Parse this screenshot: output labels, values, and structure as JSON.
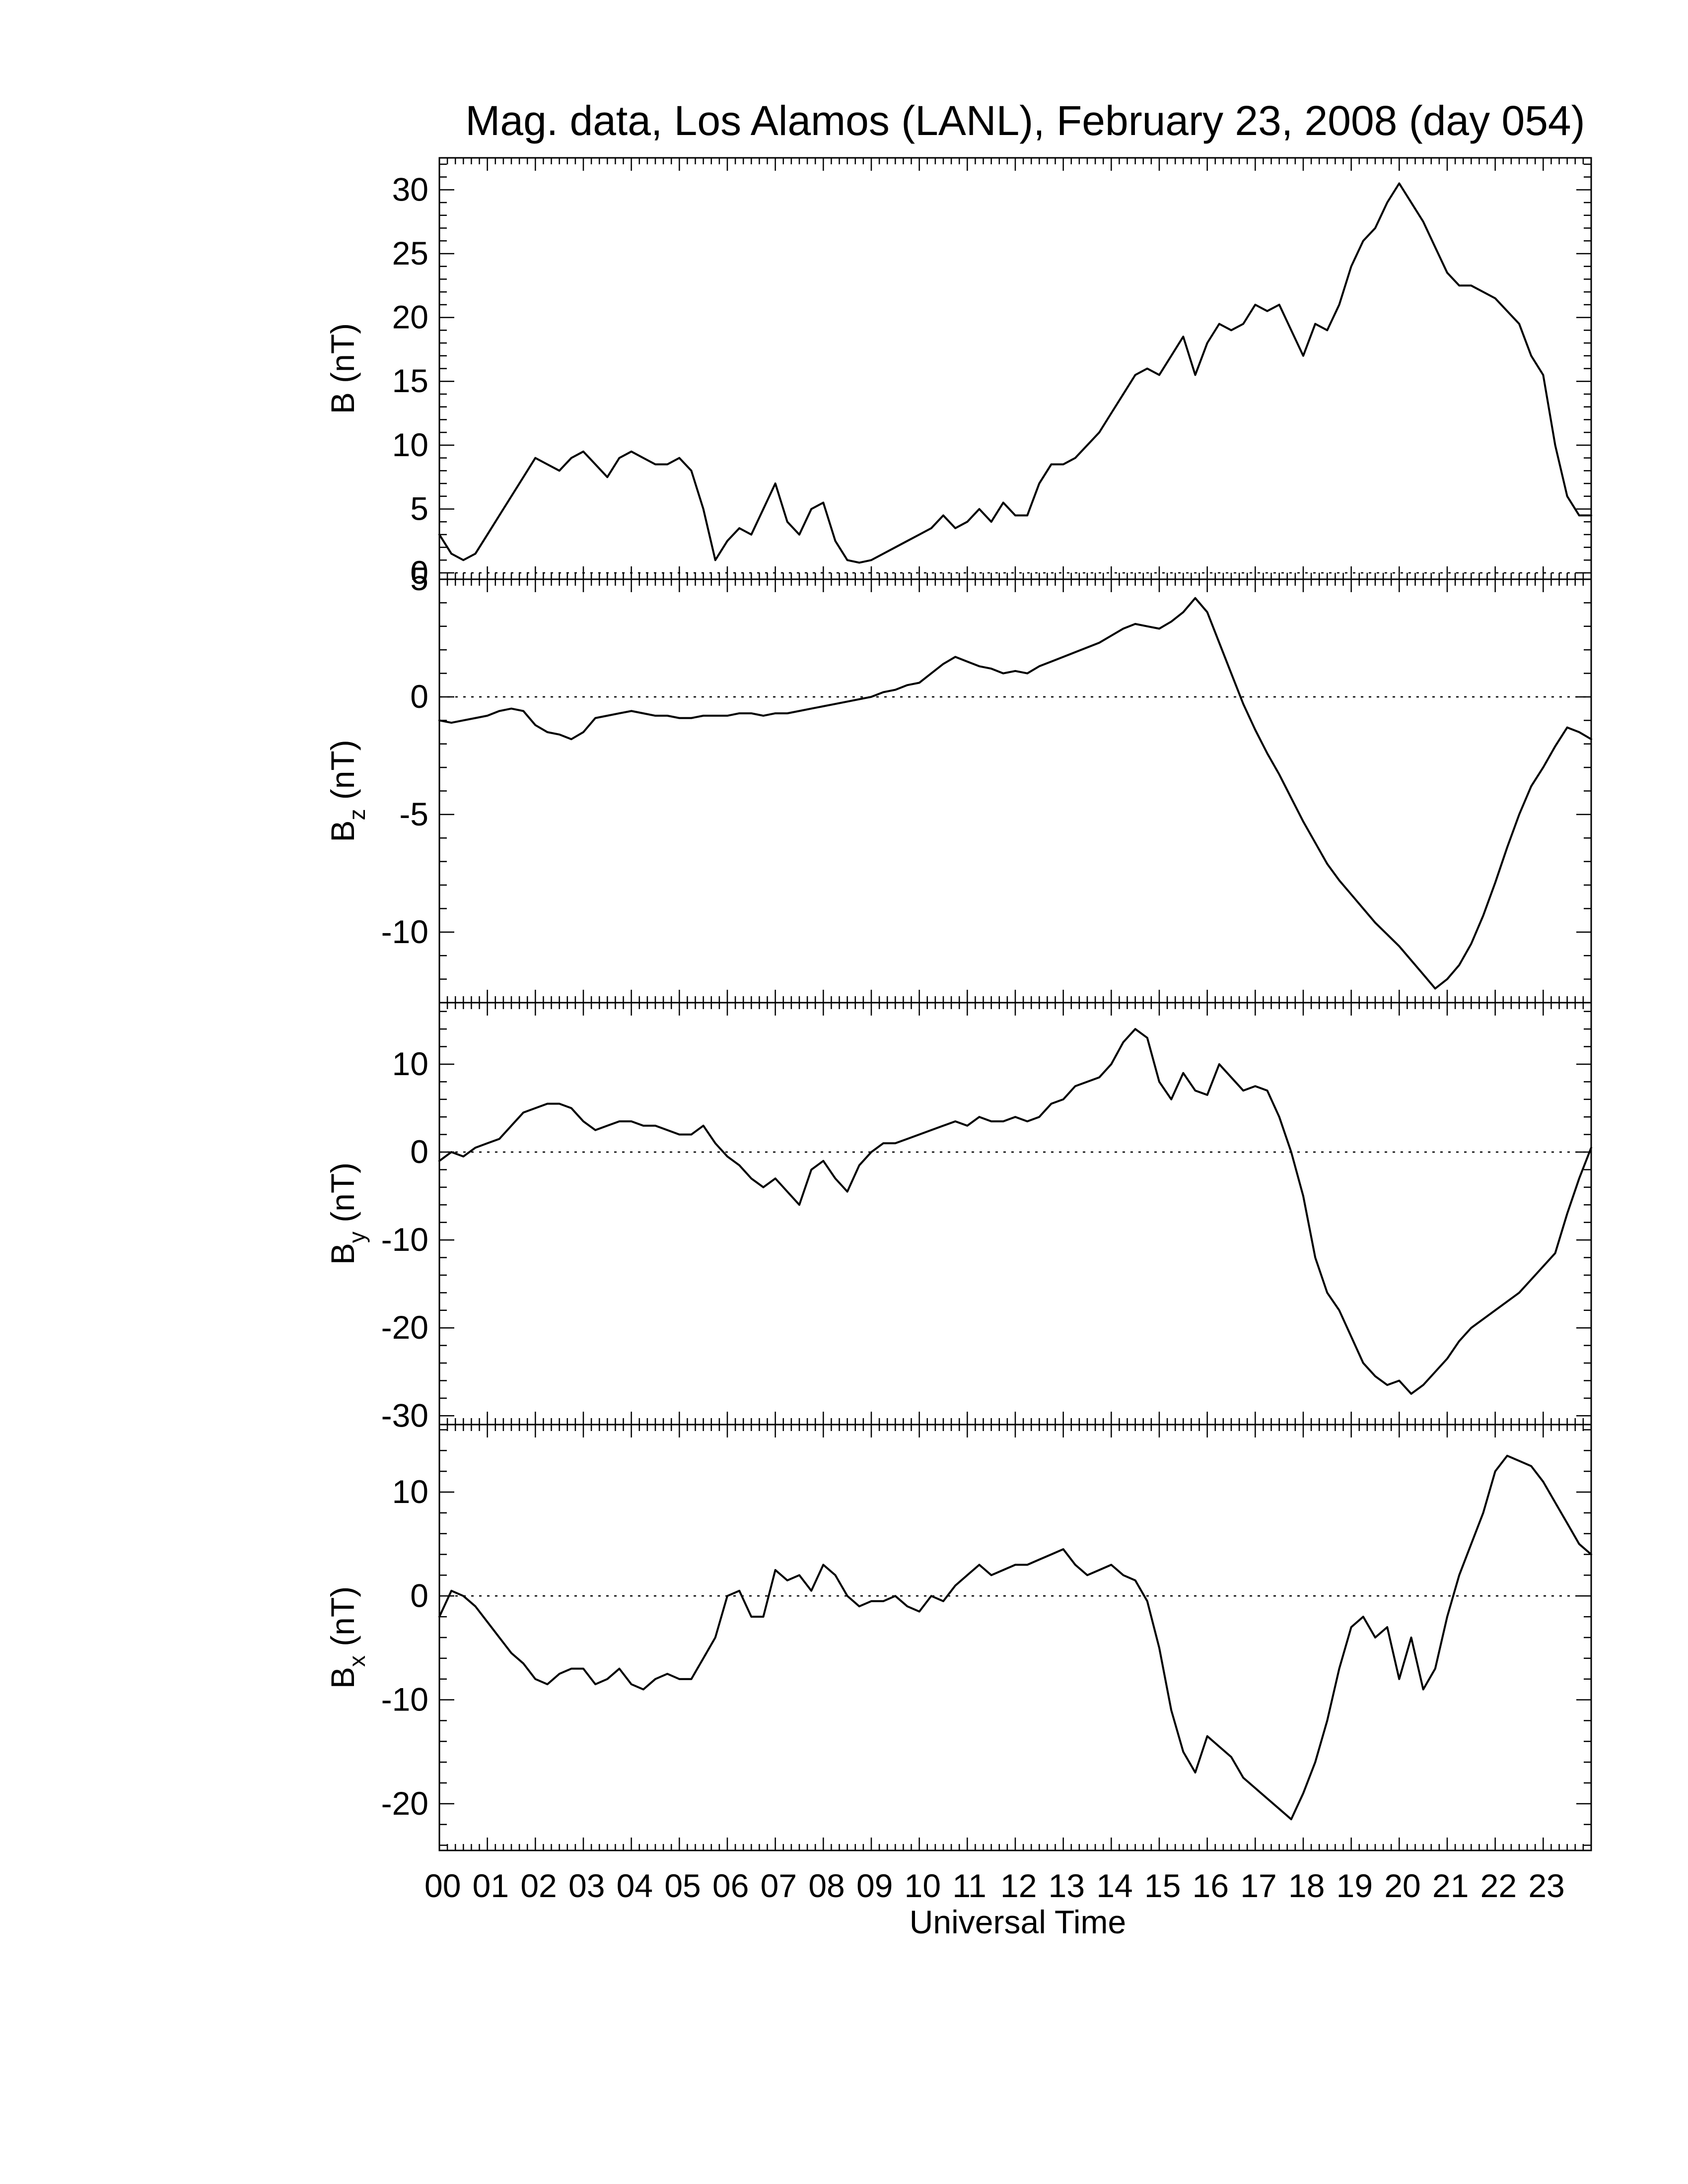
{
  "figure": {
    "title": "Mag. data, Los Alamos (LANL), February 23, 2008 (day 054)",
    "xlabel": "Universal Time",
    "x_tick_labels": [
      "00",
      "01",
      "02",
      "03",
      "04",
      "05",
      "06",
      "07",
      "08",
      "09",
      "10",
      "11",
      "12",
      "13",
      "14",
      "15",
      "16",
      "17",
      "18",
      "19",
      "20",
      "21",
      "22",
      "23"
    ]
  },
  "chart_data": [
    {
      "type": "line",
      "name": "B",
      "ylabel": "B (nT)",
      "ylabel_main": "B",
      "ylabel_sub": "",
      "ylabel_unit": "(nT)",
      "xlim": [
        0,
        24
      ],
      "ylim": [
        -0.5,
        32.5
      ],
      "yticks": [
        0,
        5,
        10,
        15,
        20,
        25,
        30
      ],
      "zero_line": true,
      "series": [
        {
          "x": [
            0.0,
            0.25,
            0.5,
            0.75,
            1.0,
            1.25,
            1.5,
            1.75,
            2.0,
            2.25,
            2.5,
            2.75,
            3.0,
            3.25,
            3.5,
            3.75,
            4.0,
            4.25,
            4.5,
            4.75,
            5.0,
            5.25,
            5.5,
            5.75,
            6.0,
            6.25,
            6.5,
            6.75,
            7.0,
            7.25,
            7.5,
            7.75,
            8.0,
            8.25,
            8.5,
            8.75,
            9.0,
            9.25,
            9.5,
            9.75,
            10.0,
            10.25,
            10.5,
            10.75,
            11.0,
            11.25,
            11.5,
            11.75,
            12.0,
            12.25,
            12.5,
            12.75,
            13.0,
            13.25,
            13.5,
            13.75,
            14.0,
            14.25,
            14.5,
            14.75,
            15.0,
            15.25,
            15.5,
            15.75,
            16.0,
            16.25,
            16.5,
            16.75,
            17.0,
            17.25,
            17.5,
            17.75,
            18.0,
            18.25,
            18.5,
            18.75,
            19.0,
            19.25,
            19.5,
            19.75,
            20.0,
            20.25,
            20.5,
            20.75,
            21.0,
            21.25,
            21.5,
            21.75,
            22.0,
            22.25,
            22.5,
            22.75,
            23.0,
            23.25,
            23.5,
            23.75,
            24.0
          ],
          "y": [
            3.0,
            1.5,
            1.0,
            1.5,
            3.0,
            4.5,
            6.0,
            7.5,
            9.0,
            8.5,
            8.0,
            9.0,
            9.5,
            8.5,
            7.5,
            9.0,
            9.5,
            9.0,
            8.5,
            8.5,
            9.0,
            8.0,
            5.0,
            1.0,
            2.5,
            3.5,
            3.0,
            5.0,
            7.0,
            4.0,
            3.0,
            5.0,
            5.5,
            2.5,
            1.0,
            0.8,
            1.0,
            1.5,
            2.0,
            2.5,
            3.0,
            3.5,
            4.5,
            3.5,
            4.0,
            5.0,
            4.0,
            5.5,
            4.5,
            4.5,
            7.0,
            8.5,
            8.5,
            9.0,
            10.0,
            11.0,
            12.5,
            14.0,
            15.5,
            16.0,
            15.5,
            17.0,
            18.5,
            15.5,
            18.0,
            19.5,
            19.0,
            19.5,
            21.0,
            20.5,
            21.0,
            19.0,
            17.0,
            19.5,
            19.0,
            21.0,
            24.0,
            26.0,
            27.0,
            29.0,
            30.5,
            29.0,
            27.5,
            25.5,
            23.5,
            22.5,
            22.5,
            22.0,
            21.5,
            20.5,
            19.5,
            17.0,
            15.5,
            10.0,
            6.0,
            4.5,
            4.5
          ]
        }
      ]
    },
    {
      "type": "line",
      "name": "Bz",
      "ylabel": "Bz (nT)",
      "ylabel_main": "B",
      "ylabel_sub": "z",
      "ylabel_unit": "(nT)",
      "xlim": [
        0,
        24
      ],
      "ylim": [
        -13,
        5
      ],
      "yticks": [
        5,
        0,
        -5,
        -10
      ],
      "zero_line": true,
      "series": [
        {
          "x": [
            0.0,
            0.25,
            0.5,
            0.75,
            1.0,
            1.25,
            1.5,
            1.75,
            2.0,
            2.25,
            2.5,
            2.75,
            3.0,
            3.25,
            3.5,
            3.75,
            4.0,
            4.25,
            4.5,
            4.75,
            5.0,
            5.25,
            5.5,
            5.75,
            6.0,
            6.25,
            6.5,
            6.75,
            7.0,
            7.25,
            7.5,
            7.75,
            8.0,
            8.25,
            8.5,
            8.75,
            9.0,
            9.25,
            9.5,
            9.75,
            10.0,
            10.25,
            10.5,
            10.75,
            11.0,
            11.25,
            11.5,
            11.75,
            12.0,
            12.25,
            12.5,
            12.75,
            13.0,
            13.25,
            13.5,
            13.75,
            14.0,
            14.25,
            14.5,
            14.75,
            15.0,
            15.25,
            15.5,
            15.75,
            16.0,
            16.25,
            16.5,
            16.75,
            17.0,
            17.25,
            17.5,
            17.75,
            18.0,
            18.25,
            18.5,
            18.75,
            19.0,
            19.25,
            19.5,
            19.75,
            20.0,
            20.25,
            20.5,
            20.75,
            21.0,
            21.25,
            21.5,
            21.75,
            22.0,
            22.25,
            22.5,
            22.75,
            23.0,
            23.25,
            23.5,
            23.75,
            24.0
          ],
          "y": [
            -1.0,
            -1.1,
            -1.0,
            -0.9,
            -0.8,
            -0.6,
            -0.5,
            -0.6,
            -1.2,
            -1.5,
            -1.6,
            -1.8,
            -1.5,
            -0.9,
            -0.8,
            -0.7,
            -0.6,
            -0.7,
            -0.8,
            -0.8,
            -0.9,
            -0.9,
            -0.8,
            -0.8,
            -0.8,
            -0.7,
            -0.7,
            -0.8,
            -0.7,
            -0.7,
            -0.6,
            -0.5,
            -0.4,
            -0.3,
            -0.2,
            -0.1,
            0.0,
            0.2,
            0.3,
            0.5,
            0.6,
            1.0,
            1.4,
            1.7,
            1.5,
            1.3,
            1.2,
            1.0,
            1.1,
            1.0,
            1.3,
            1.5,
            1.7,
            1.9,
            2.1,
            2.3,
            2.6,
            2.9,
            3.1,
            3.0,
            2.9,
            3.2,
            3.6,
            4.2,
            3.6,
            2.3,
            1.0,
            -0.3,
            -1.4,
            -2.4,
            -3.3,
            -4.3,
            -5.3,
            -6.2,
            -7.1,
            -7.8,
            -8.4,
            -9.0,
            -9.6,
            -10.1,
            -10.6,
            -11.2,
            -11.8,
            -12.4,
            -12.0,
            -11.4,
            -10.5,
            -9.3,
            -7.9,
            -6.4,
            -5.0,
            -3.8,
            -3.0,
            -2.1,
            -1.3,
            -1.5,
            -1.8
          ]
        }
      ]
    },
    {
      "type": "line",
      "name": "By",
      "ylabel": "By (nT)",
      "ylabel_main": "B",
      "ylabel_sub": "y",
      "ylabel_unit": "(nT)",
      "xlim": [
        0,
        24
      ],
      "ylim": [
        -31,
        17
      ],
      "yticks": [
        10,
        0,
        -10,
        -20,
        -30
      ],
      "zero_line": true,
      "series": [
        {
          "x": [
            0.0,
            0.25,
            0.5,
            0.75,
            1.0,
            1.25,
            1.5,
            1.75,
            2.0,
            2.25,
            2.5,
            2.75,
            3.0,
            3.25,
            3.5,
            3.75,
            4.0,
            4.25,
            4.5,
            4.75,
            5.0,
            5.25,
            5.5,
            5.75,
            6.0,
            6.25,
            6.5,
            6.75,
            7.0,
            7.25,
            7.5,
            7.75,
            8.0,
            8.25,
            8.5,
            8.75,
            9.0,
            9.25,
            9.5,
            9.75,
            10.0,
            10.25,
            10.5,
            10.75,
            11.0,
            11.25,
            11.5,
            11.75,
            12.0,
            12.25,
            12.5,
            12.75,
            13.0,
            13.25,
            13.5,
            13.75,
            14.0,
            14.25,
            14.5,
            14.75,
            15.0,
            15.25,
            15.5,
            15.75,
            16.0,
            16.25,
            16.5,
            16.75,
            17.0,
            17.25,
            17.5,
            17.75,
            18.0,
            18.25,
            18.5,
            18.75,
            19.0,
            19.25,
            19.5,
            19.75,
            20.0,
            20.25,
            20.5,
            20.75,
            21.0,
            21.25,
            21.5,
            21.75,
            22.0,
            22.25,
            22.5,
            22.75,
            23.0,
            23.25,
            23.5,
            23.75,
            24.0
          ],
          "y": [
            -1.0,
            0.0,
            -0.5,
            0.5,
            1.0,
            1.5,
            3.0,
            4.5,
            5.0,
            5.5,
            5.5,
            5.0,
            3.5,
            2.5,
            3.0,
            3.5,
            3.5,
            3.0,
            3.0,
            2.5,
            2.0,
            2.0,
            3.0,
            1.0,
            -0.5,
            -1.5,
            -3.0,
            -4.0,
            -3.0,
            -4.5,
            -6.0,
            -2.0,
            -1.0,
            -3.0,
            -4.5,
            -1.5,
            0.0,
            1.0,
            1.0,
            1.5,
            2.0,
            2.5,
            3.0,
            3.5,
            3.0,
            4.0,
            3.5,
            3.5,
            4.0,
            3.5,
            4.0,
            5.5,
            6.0,
            7.5,
            8.0,
            8.5,
            10.0,
            12.5,
            14.0,
            13.0,
            8.0,
            6.0,
            9.0,
            7.0,
            6.5,
            10.0,
            8.5,
            7.0,
            7.5,
            7.0,
            4.0,
            0.0,
            -5.0,
            -12.0,
            -16.0,
            -18.0,
            -21.0,
            -24.0,
            -25.5,
            -26.5,
            -26.0,
            -27.5,
            -26.5,
            -25.0,
            -23.5,
            -21.5,
            -20.0,
            -19.0,
            -18.0,
            -17.0,
            -16.0,
            -14.5,
            -13.0,
            -11.5,
            -7.0,
            -3.0,
            0.5
          ]
        }
      ]
    },
    {
      "type": "line",
      "name": "Bx",
      "ylabel": "Bx (nT)",
      "ylabel_main": "B",
      "ylabel_sub": "x",
      "ylabel_unit": "(nT)",
      "xlim": [
        0,
        24
      ],
      "ylim": [
        -24.5,
        16.5
      ],
      "yticks": [
        10,
        0,
        -10,
        -20
      ],
      "zero_line": true,
      "series": [
        {
          "x": [
            0.0,
            0.25,
            0.5,
            0.75,
            1.0,
            1.25,
            1.5,
            1.75,
            2.0,
            2.25,
            2.5,
            2.75,
            3.0,
            3.25,
            3.5,
            3.75,
            4.0,
            4.25,
            4.5,
            4.75,
            5.0,
            5.25,
            5.5,
            5.75,
            6.0,
            6.25,
            6.5,
            6.75,
            7.0,
            7.25,
            7.5,
            7.75,
            8.0,
            8.25,
            8.5,
            8.75,
            9.0,
            9.25,
            9.5,
            9.75,
            10.0,
            10.25,
            10.5,
            10.75,
            11.0,
            11.25,
            11.5,
            11.75,
            12.0,
            12.25,
            12.5,
            12.75,
            13.0,
            13.25,
            13.5,
            13.75,
            14.0,
            14.25,
            14.5,
            14.75,
            15.0,
            15.25,
            15.5,
            15.75,
            16.0,
            16.25,
            16.5,
            16.75,
            17.0,
            17.25,
            17.5,
            17.75,
            18.0,
            18.25,
            18.5,
            18.75,
            19.0,
            19.25,
            19.5,
            19.75,
            20.0,
            20.25,
            20.5,
            20.75,
            21.0,
            21.25,
            21.5,
            21.75,
            22.0,
            22.25,
            22.5,
            22.75,
            23.0,
            23.25,
            23.5,
            23.75,
            24.0
          ],
          "y": [
            -2.0,
            0.5,
            0.0,
            -1.0,
            -2.5,
            -4.0,
            -5.5,
            -6.5,
            -8.0,
            -8.5,
            -7.5,
            -7.0,
            -7.0,
            -8.5,
            -8.0,
            -7.0,
            -8.5,
            -9.0,
            -8.0,
            -7.5,
            -8.0,
            -8.0,
            -6.0,
            -4.0,
            0.0,
            0.5,
            -2.0,
            -2.0,
            2.5,
            1.5,
            2.0,
            0.5,
            3.0,
            2.0,
            0.0,
            -1.0,
            -0.5,
            -0.5,
            0.0,
            -1.0,
            -1.5,
            0.0,
            -0.5,
            1.0,
            2.0,
            3.0,
            2.0,
            2.5,
            3.0,
            3.0,
            3.5,
            4.0,
            4.5,
            3.0,
            2.0,
            2.5,
            3.0,
            2.0,
            1.5,
            -0.5,
            -5.0,
            -11.0,
            -15.0,
            -17.0,
            -13.5,
            -14.5,
            -15.5,
            -17.5,
            -18.5,
            -19.5,
            -20.5,
            -21.5,
            -19.0,
            -16.0,
            -12.0,
            -7.0,
            -3.0,
            -2.0,
            -4.0,
            -3.0,
            -8.0,
            -4.0,
            -9.0,
            -7.0,
            -2.0,
            2.0,
            5.0,
            8.0,
            12.0,
            13.5,
            13.0,
            12.5,
            11.0,
            9.0,
            7.0,
            5.0,
            4.0
          ]
        }
      ]
    }
  ]
}
